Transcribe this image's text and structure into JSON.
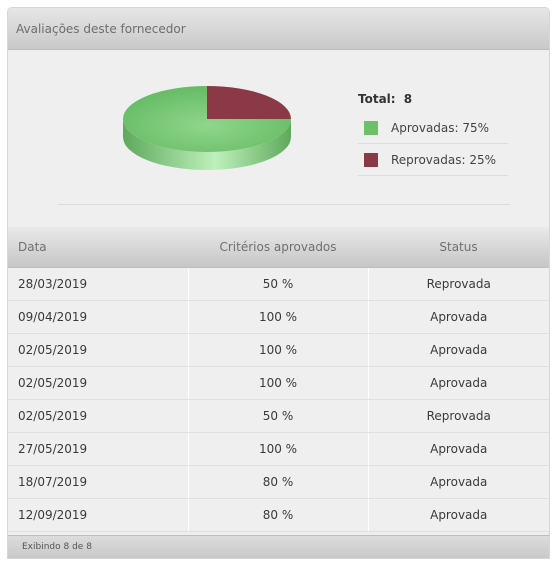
{
  "panel": {
    "title": "Avaliações deste fornecedor"
  },
  "legend": {
    "total_label": "Total:",
    "total_value": "8",
    "items": [
      {
        "label": "Aprovadas: 75%",
        "color": "#6cc06a"
      },
      {
        "label": "Reprovadas: 25%",
        "color": "#8b3847"
      }
    ]
  },
  "chart_data": {
    "type": "pie",
    "categories": [
      "Aprovadas",
      "Reprovadas"
    ],
    "values": [
      75,
      25
    ],
    "total": 8,
    "colors": [
      "#6cc06a",
      "#8b3847"
    ]
  },
  "table": {
    "headers": [
      "Data",
      "Critérios aprovados",
      "Status"
    ],
    "rows": [
      [
        "28/03/2019",
        "50 %",
        "Reprovada"
      ],
      [
        "09/04/2019",
        "100 %",
        "Aprovada"
      ],
      [
        "02/05/2019",
        "100 %",
        "Aprovada"
      ],
      [
        "02/05/2019",
        "100 %",
        "Aprovada"
      ],
      [
        "02/05/2019",
        "50 %",
        "Reprovada"
      ],
      [
        "27/05/2019",
        "100 %",
        "Aprovada"
      ],
      [
        "18/07/2019",
        "80 %",
        "Aprovada"
      ],
      [
        "12/09/2019",
        "80 %",
        "Aprovada"
      ]
    ]
  },
  "footer": {
    "text": "Exibindo 8 de 8"
  }
}
